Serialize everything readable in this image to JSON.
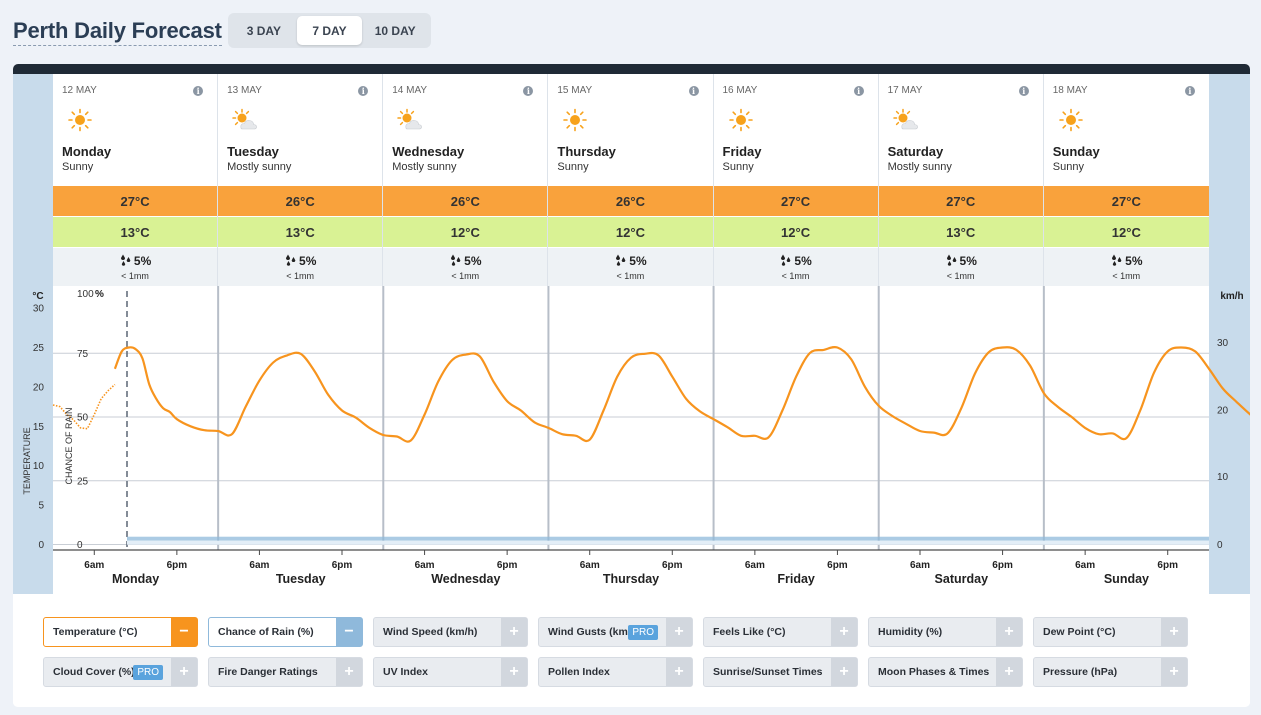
{
  "header": {
    "title": "Perth Daily Forecast"
  },
  "range_options": [
    {
      "label": "3 DAY",
      "active": false
    },
    {
      "label": "7 DAY",
      "active": true
    },
    {
      "label": "10 DAY",
      "active": false
    }
  ],
  "days": [
    {
      "date": "12 MAY",
      "name": "Monday",
      "desc": "Sunny",
      "icon": "sun-icon",
      "max": "27°C",
      "min": "13°C",
      "rain_chance": "5%",
      "rain_amount": "< 1mm"
    },
    {
      "date": "13 MAY",
      "name": "Tuesday",
      "desc": "Mostly sunny",
      "icon": "sun-cloud-icon",
      "max": "26°C",
      "min": "13°C",
      "rain_chance": "5%",
      "rain_amount": "< 1mm"
    },
    {
      "date": "14 MAY",
      "name": "Wednesday",
      "desc": "Mostly sunny",
      "icon": "sun-cloud-icon",
      "max": "26°C",
      "min": "12°C",
      "rain_chance": "5%",
      "rain_amount": "< 1mm"
    },
    {
      "date": "15 MAY",
      "name": "Thursday",
      "desc": "Sunny",
      "icon": "sun-icon",
      "max": "26°C",
      "min": "12°C",
      "rain_chance": "5%",
      "rain_amount": "< 1mm"
    },
    {
      "date": "16 MAY",
      "name": "Friday",
      "desc": "Sunny",
      "icon": "sun-icon",
      "max": "27°C",
      "min": "12°C",
      "rain_chance": "5%",
      "rain_amount": "< 1mm"
    },
    {
      "date": "17 MAY",
      "name": "Saturday",
      "desc": "Mostly sunny",
      "icon": "sun-cloud-icon",
      "max": "27°C",
      "min": "13°C",
      "rain_chance": "5%",
      "rain_amount": "< 1mm"
    },
    {
      "date": "18 MAY",
      "name": "Sunday",
      "desc": "Sunny",
      "icon": "sun-icon",
      "max": "27°C",
      "min": "12°C",
      "rain_chance": "5%",
      "rain_amount": "< 1mm"
    }
  ],
  "chart_data": {
    "type": "line",
    "temp_axis": {
      "unit": "°C",
      "label": "TEMPERATURE",
      "ticks": [
        0,
        5,
        10,
        15,
        20,
        25,
        30
      ],
      "range": [
        0,
        30
      ]
    },
    "rain_axis": {
      "unit": "%",
      "label": "CHANCE OF RAIN",
      "ticks": [
        0,
        25,
        50,
        75,
        100
      ],
      "top_label": "100"
    },
    "wind_axis": {
      "unit": "km/h",
      "ticks": [
        0,
        10,
        20,
        30
      ]
    },
    "x_tick_labels": [
      "6am",
      "6pm"
    ],
    "day_labels": [
      "Monday",
      "Tuesday",
      "Wednesday",
      "Thursday",
      "Friday",
      "Saturday",
      "Sunday"
    ],
    "series": [
      {
        "name": "Temperature (°C)",
        "color": "#f7941e",
        "observed_hours": [
          0,
          1,
          2,
          3,
          4,
          5,
          6,
          7,
          8,
          9
        ],
        "observed_values": [
          17.7,
          17.5,
          16.5,
          15.8,
          14.8,
          14.7,
          16.5,
          18.5,
          19.5,
          20.3
        ],
        "forecast_points": [
          [
            9,
            22.3
          ],
          [
            10,
            24.5
          ],
          [
            11,
            25.0
          ],
          [
            12,
            24.8
          ],
          [
            13,
            23.6
          ],
          [
            14,
            20.3
          ],
          [
            15,
            18.5
          ],
          [
            16,
            17.3
          ],
          [
            17,
            16.8
          ],
          [
            18,
            15.9
          ],
          [
            20,
            15.0
          ],
          [
            22,
            14.5
          ],
          [
            24,
            14.4
          ],
          [
            26,
            14.0
          ],
          [
            28,
            17.5
          ],
          [
            30,
            20.8
          ],
          [
            32,
            23.1
          ],
          [
            34,
            24.0
          ],
          [
            36,
            24.2
          ],
          [
            38,
            22.0
          ],
          [
            40,
            19.0
          ],
          [
            42,
            17.0
          ],
          [
            44,
            16.1
          ],
          [
            46,
            14.8
          ],
          [
            48,
            13.9
          ],
          [
            50,
            13.7
          ],
          [
            52,
            13.2
          ],
          [
            54,
            16.5
          ],
          [
            56,
            20.7
          ],
          [
            58,
            23.4
          ],
          [
            60,
            24.1
          ],
          [
            62,
            23.9
          ],
          [
            64,
            20.7
          ],
          [
            66,
            18.2
          ],
          [
            68,
            17.0
          ],
          [
            70,
            15.5
          ],
          [
            72,
            14.8
          ],
          [
            74,
            14.0
          ],
          [
            76,
            13.8
          ],
          [
            78,
            13.3
          ],
          [
            80,
            17.0
          ],
          [
            82,
            21.3
          ],
          [
            84,
            23.7
          ],
          [
            86,
            24.2
          ],
          [
            88,
            24.0
          ],
          [
            90,
            21.3
          ],
          [
            92,
            18.5
          ],
          [
            94,
            16.9
          ],
          [
            96,
            15.9
          ],
          [
            98,
            14.9
          ],
          [
            100,
            13.8
          ],
          [
            102,
            13.8
          ],
          [
            104,
            13.6
          ],
          [
            106,
            17.0
          ],
          [
            108,
            21.3
          ],
          [
            110,
            24.3
          ],
          [
            112,
            24.7
          ],
          [
            114,
            25.0
          ],
          [
            116,
            23.5
          ],
          [
            118,
            20.0
          ],
          [
            120,
            17.6
          ],
          [
            122,
            16.3
          ],
          [
            124,
            15.3
          ],
          [
            126,
            14.4
          ],
          [
            128,
            14.2
          ],
          [
            130,
            14.1
          ],
          [
            132,
            17.3
          ],
          [
            134,
            21.7
          ],
          [
            136,
            24.4
          ],
          [
            138,
            25.0
          ],
          [
            140,
            24.7
          ],
          [
            142,
            22.7
          ],
          [
            144,
            19.2
          ],
          [
            146,
            17.5
          ],
          [
            148,
            16.2
          ],
          [
            150,
            14.8
          ],
          [
            152,
            14.0
          ],
          [
            154,
            14.1
          ],
          [
            156,
            13.5
          ],
          [
            158,
            17.0
          ],
          [
            160,
            21.8
          ],
          [
            162,
            24.5
          ],
          [
            164,
            25.0
          ],
          [
            166,
            24.5
          ],
          [
            168,
            22.3
          ],
          [
            170,
            19.8
          ],
          [
            172,
            18.1
          ],
          [
            174,
            16.5
          ],
          [
            175,
            15.9
          ]
        ]
      },
      {
        "name": "Chance of Rain (%)",
        "color": "#8fb9db",
        "value": 5
      }
    ]
  },
  "legend": [
    {
      "label": "Temperature (°C)",
      "state": "on",
      "btn": "−",
      "variant": "temp"
    },
    {
      "label": "Chance of Rain (%)",
      "state": "on",
      "btn": "−",
      "variant": "rain"
    },
    {
      "label": "Wind Speed (km/h)",
      "state": "off",
      "btn": "+",
      "variant": ""
    },
    {
      "label": "Wind Gusts (km/h)",
      "state": "off",
      "btn": "+",
      "variant": "",
      "pro": "PRO"
    },
    {
      "label": "Feels Like (°C)",
      "state": "off",
      "btn": "+",
      "variant": ""
    },
    {
      "label": "Humidity (%)",
      "state": "off",
      "btn": "+",
      "variant": ""
    },
    {
      "label": "Dew Point (°C)",
      "state": "off",
      "btn": "+",
      "variant": ""
    },
    {
      "label": "Cloud Cover (%)",
      "state": "off",
      "btn": "+",
      "variant": "",
      "pro": "PRO"
    },
    {
      "label": "Fire Danger Ratings",
      "state": "off",
      "btn": "+",
      "variant": ""
    },
    {
      "label": "UV Index",
      "state": "off",
      "btn": "+",
      "variant": ""
    },
    {
      "label": "Pollen Index",
      "state": "off",
      "btn": "+",
      "variant": ""
    },
    {
      "label": "Sunrise/Sunset Times",
      "state": "off",
      "btn": "+",
      "variant": ""
    },
    {
      "label": "Moon Phases & Times",
      "state": "off",
      "btn": "+",
      "variant": ""
    },
    {
      "label": "Pressure (hPa)",
      "state": "off",
      "btn": "+",
      "variant": ""
    }
  ],
  "colors": {
    "accent_orange": "#f7941e",
    "max_band": "#f9a23c",
    "min_band": "#d9f294",
    "rain_blue": "#8fb9db",
    "dark_bar": "#1f2a36"
  }
}
